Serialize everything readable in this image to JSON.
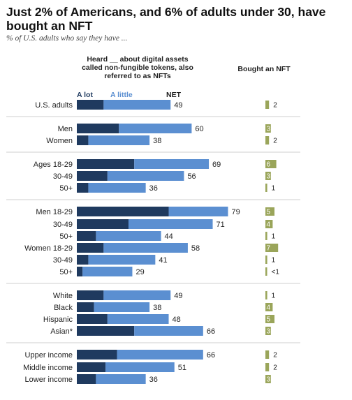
{
  "title": "Just 2% of Americans, and 6% of adults under 30, have bought an NFT",
  "subtitle": "% of U.S. adults who say they have ...",
  "headers": {
    "heard": "Heard __ about digital assets called non-fungible tokens, also referred to as NFTs",
    "bought": "Bought an NFT"
  },
  "legend": {
    "a_lot": "A lot",
    "a_little": "A little",
    "net": "NET"
  },
  "colors": {
    "a_lot": "#1f3a5f",
    "a_little": "#5b8fd1",
    "bought": "#9aa55a",
    "divider": "#cfcfcf"
  },
  "chart_data": {
    "type": "bar",
    "stacked": true,
    "orientation": "horizontal",
    "categories": [
      "U.S. adults",
      "Men",
      "Women",
      "Ages 18-29",
      "30-49",
      "50+",
      "Men 18-29",
      "30-49",
      "50+",
      "Women 18-29",
      "30-49",
      "50+",
      "White",
      "Black",
      "Hispanic",
      "Asian*",
      "Upper income",
      "Middle income",
      "Lower income"
    ],
    "groups": [
      1,
      2,
      3,
      6,
      4,
      3
    ],
    "series": [
      {
        "name": "A lot",
        "values": [
          14,
          22,
          6,
          30,
          16,
          6,
          48,
          27,
          10,
          14,
          6,
          3,
          14,
          9,
          16,
          30,
          21,
          15,
          10
        ]
      },
      {
        "name": "A little",
        "values": [
          35,
          38,
          32,
          39,
          40,
          30,
          31,
          44,
          34,
          44,
          35,
          26,
          35,
          29,
          32,
          36,
          45,
          36,
          26
        ]
      }
    ],
    "net": [
      "49",
      "60",
      "38",
      "69",
      "56",
      "36",
      "79",
      "71",
      "44",
      "58",
      "41",
      "29",
      "49",
      "38",
      "48",
      "66",
      "66",
      "51",
      "36"
    ],
    "bought": {
      "name": "Bought an NFT",
      "values": [
        2,
        3,
        2,
        6,
        3,
        1,
        5,
        4,
        1,
        7,
        1,
        0.5,
        1,
        4,
        5,
        3,
        2,
        2,
        3
      ],
      "labels": [
        "2",
        "3",
        "2",
        "6",
        "3",
        "1",
        "5",
        "4",
        "1",
        "7",
        "1",
        "<1",
        "1",
        "4",
        "5",
        "3",
        "2",
        "2",
        "3"
      ]
    },
    "xlim": [
      0,
      100
    ]
  }
}
